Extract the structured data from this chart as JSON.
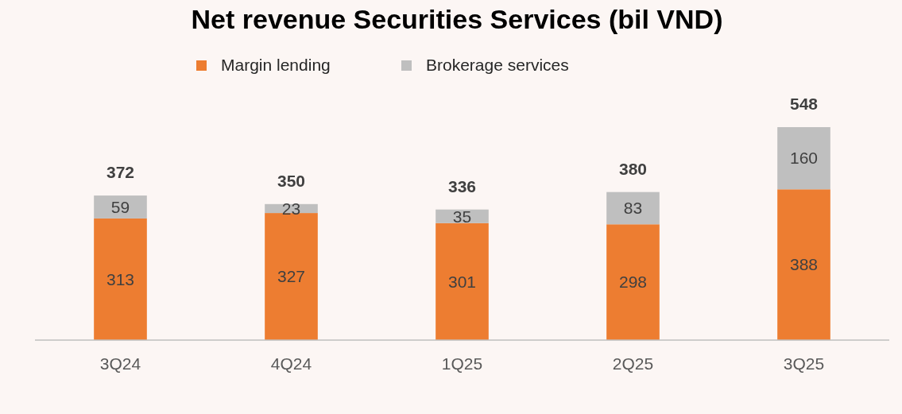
{
  "chart_data": {
    "type": "bar",
    "title": "Net revenue Securities Services (bil VND)",
    "categories": [
      "3Q24",
      "4Q24",
      "1Q25",
      "2Q25",
      "3Q25"
    ],
    "series": [
      {
        "name": "Margin lending",
        "color": "#ed7d31",
        "values": [
          313,
          327,
          301,
          298,
          388
        ]
      },
      {
        "name": "Brokerage services",
        "color": "#bfbfbf",
        "values": [
          59,
          23,
          35,
          83,
          160
        ]
      }
    ],
    "stacked": true,
    "data_labels": true,
    "totals": [
      "372",
      "350",
      "336",
      "380",
      "548"
    ],
    "legend": "top"
  }
}
